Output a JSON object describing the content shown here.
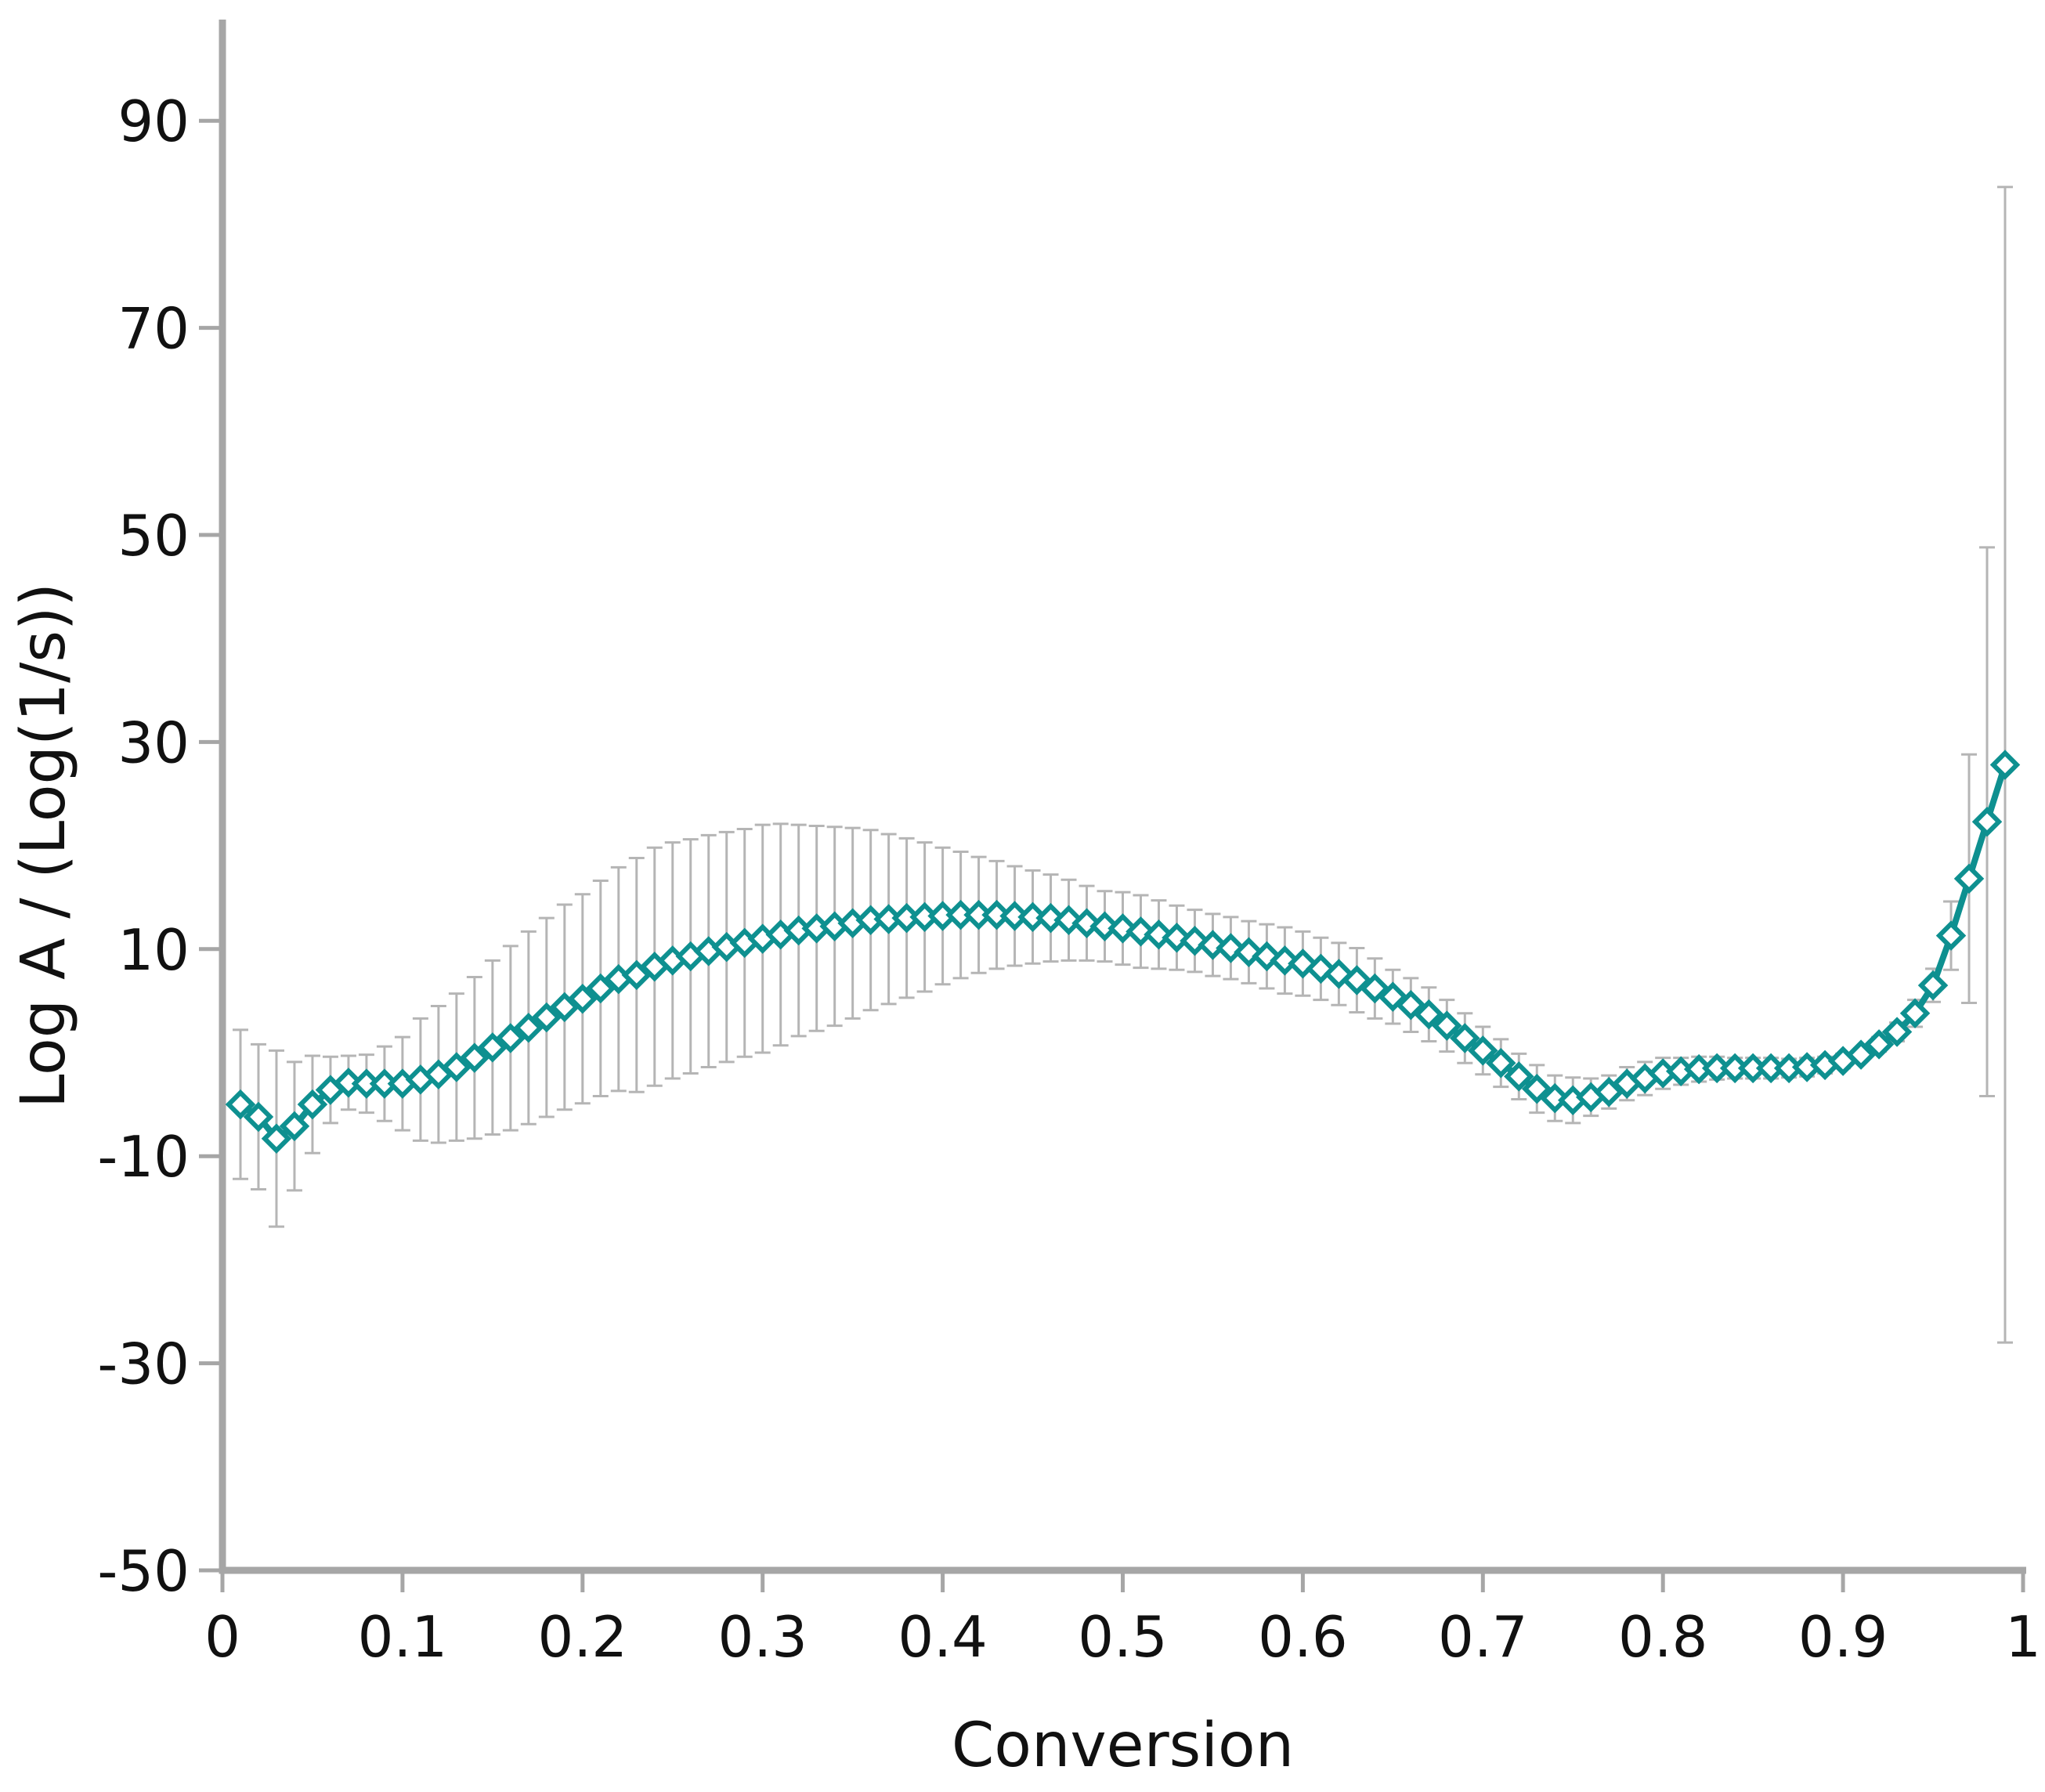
{
  "chart_data": {
    "type": "scatter",
    "title": "",
    "xlabel": "Conversion",
    "ylabel": "Log A / (Log(1/s))",
    "xlim": [
      0,
      1
    ],
    "ylim": [
      -50,
      100
    ],
    "x_ticks": [
      0,
      0.1,
      0.2,
      0.3,
      0.4,
      0.5,
      0.6,
      0.7,
      0.8,
      0.9,
      1
    ],
    "x_tick_labels": [
      "0",
      "0.1",
      "0.2",
      "0.3",
      "0.4",
      "0.5",
      "0.6",
      "0.7",
      "0.8",
      "0.9",
      "1"
    ],
    "y_ticks": [
      -50,
      -30,
      -10,
      10,
      30,
      50,
      70,
      90
    ],
    "y_tick_labels": [
      "-50",
      "-30",
      "-10",
      "10",
      "30",
      "50",
      "70",
      "90"
    ],
    "grid": false,
    "legend": "none",
    "colors": {
      "series": "#0e9090",
      "marker_fill": "#ffffff",
      "error_bar": "#b5b5b5",
      "axis": "#a6a6a6"
    },
    "series": [
      {
        "marker": "diamond",
        "x": [
          0.01,
          0.02,
          0.03,
          0.04,
          0.05,
          0.06,
          0.07,
          0.08,
          0.09,
          0.1,
          0.11,
          0.12,
          0.13,
          0.14,
          0.15,
          0.16,
          0.17,
          0.18,
          0.19,
          0.2,
          0.21,
          0.22,
          0.23,
          0.24,
          0.25,
          0.26,
          0.27,
          0.28,
          0.29,
          0.3,
          0.31,
          0.32,
          0.33,
          0.34,
          0.35,
          0.36,
          0.37,
          0.38,
          0.39,
          0.4,
          0.41,
          0.42,
          0.43,
          0.44,
          0.45,
          0.46,
          0.47,
          0.48,
          0.49,
          0.5,
          0.51,
          0.52,
          0.53,
          0.54,
          0.55,
          0.56,
          0.57,
          0.58,
          0.59,
          0.6,
          0.61,
          0.62,
          0.63,
          0.64,
          0.65,
          0.66,
          0.67,
          0.68,
          0.69,
          0.7,
          0.71,
          0.72,
          0.73,
          0.74,
          0.75,
          0.76,
          0.77,
          0.78,
          0.79,
          0.8,
          0.81,
          0.82,
          0.83,
          0.84,
          0.85,
          0.86,
          0.87,
          0.88,
          0.89,
          0.9,
          0.91,
          0.92,
          0.93,
          0.94,
          0.95,
          0.96,
          0.97,
          0.98,
          0.99
        ],
        "y": [
          -5.0,
          -6.2,
          -8.3,
          -7.1,
          -5.0,
          -3.6,
          -2.9,
          -3.0,
          -3.0,
          -3.0,
          -2.6,
          -2.1,
          -1.4,
          -0.5,
          0.5,
          1.4,
          2.4,
          3.4,
          4.4,
          5.2,
          6.2,
          7.1,
          7.5,
          8.3,
          8.9,
          9.3,
          9.8,
          10.2,
          10.6,
          11.0,
          11.4,
          11.8,
          12.0,
          12.2,
          12.5,
          12.8,
          12.9,
          13.0,
          13.1,
          13.2,
          13.3,
          13.3,
          13.3,
          13.2,
          13.1,
          13.0,
          12.8,
          12.5,
          12.2,
          12.0,
          11.7,
          11.4,
          11.1,
          10.8,
          10.4,
          10.1,
          9.7,
          9.3,
          8.9,
          8.6,
          8.1,
          7.6,
          7.0,
          6.2,
          5.4,
          4.6,
          3.7,
          2.6,
          1.4,
          0.2,
          -1.0,
          -2.3,
          -3.5,
          -4.4,
          -4.6,
          -4.3,
          -3.8,
          -3.0,
          -2.5,
          -2.0,
          -1.8,
          -1.6,
          -1.5,
          -1.5,
          -1.5,
          -1.5,
          -1.5,
          -1.4,
          -1.2,
          -0.8,
          -0.2,
          0.8,
          2.0,
          3.8,
          6.5,
          11.3,
          16.8,
          22.3,
          27.8
        ],
        "error": [
          7.2,
          7.0,
          8.5,
          6.2,
          4.7,
          3.2,
          2.6,
          2.8,
          3.6,
          4.5,
          5.9,
          6.6,
          7.1,
          7.8,
          8.4,
          8.9,
          9.3,
          9.6,
          9.9,
          10.1,
          10.4,
          10.8,
          11.3,
          11.5,
          11.4,
          11.3,
          11.2,
          11.1,
          11.0,
          11.0,
          10.7,
          10.2,
          9.9,
          9.6,
          9.2,
          8.7,
          8.2,
          7.7,
          7.2,
          6.6,
          6.1,
          5.6,
          5.2,
          4.8,
          4.5,
          4.2,
          3.9,
          3.6,
          3.4,
          3.5,
          3.5,
          3.3,
          3.1,
          3.0,
          3.0,
          3.0,
          3.0,
          3.1,
          3.2,
          3.1,
          3.0,
          3.0,
          3.1,
          2.9,
          2.6,
          2.6,
          2.6,
          2.5,
          2.4,
          2.3,
          2.3,
          2.2,
          2.3,
          2.2,
          2.2,
          1.8,
          1.6,
          1.6,
          1.6,
          1.5,
          1.3,
          1.2,
          1.1,
          1.0,
          1.0,
          1.0,
          0.9,
          0.9,
          0.8,
          0.7,
          0.6,
          0.7,
          0.9,
          1.3,
          1.6,
          3.3,
          12.0,
          26.5,
          55.8
        ]
      }
    ]
  }
}
